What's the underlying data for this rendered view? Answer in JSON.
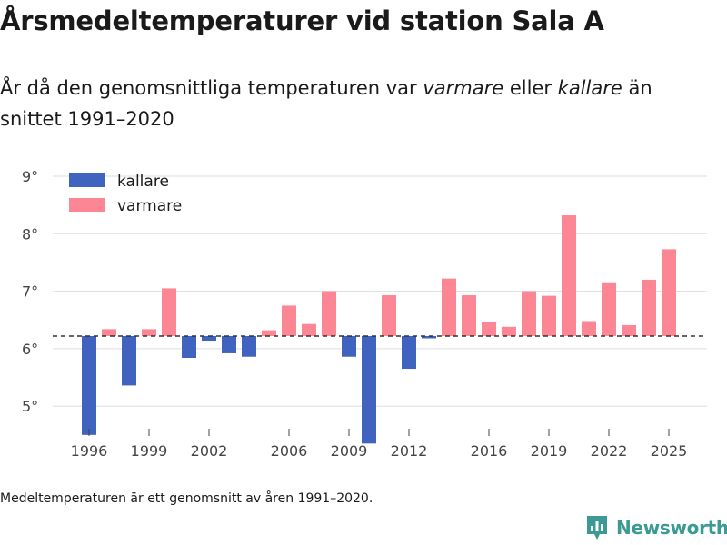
{
  "title": "Årsmedeltemperaturer vid station Sala A",
  "subtitle": {
    "part1": "År då den genomsnittliga temperaturen var ",
    "warm_word": "varmare",
    "part2": " eller ",
    "cold_word": "kallare",
    "part3": " än snittet 1991–2020"
  },
  "footnote": "Medeltemperaturen är ett genomsnitt av åren 1991–2020.",
  "brand": "Newsworthy",
  "colors": {
    "colder": "#4063bf",
    "warmer": "#fd8694",
    "grid": "#dddddd",
    "mean_line": "#333333",
    "brand": "#3b9a94"
  },
  "chart_data": {
    "type": "bar",
    "title": "Årsmedeltemperaturer vid station Sala A",
    "xlabel": "",
    "ylabel": "",
    "baseline": 6.22,
    "ylim": [
      4.45,
      9.3
    ],
    "y_ticks": [
      5,
      6,
      7,
      8,
      9
    ],
    "y_tick_labels": [
      "5°",
      "6°",
      "7°",
      "8°",
      "9°"
    ],
    "x_ticks": [
      1996,
      1999,
      2002,
      2006,
      2009,
      2012,
      2016,
      2019,
      2022,
      2025
    ],
    "legend": [
      {
        "key": "kallare",
        "label": "kallare"
      },
      {
        "key": "varmare",
        "label": "varmare"
      }
    ],
    "legend_position": "top-left",
    "years": [
      1996,
      1997,
      1998,
      1999,
      2000,
      2001,
      2002,
      2003,
      2004,
      2005,
      2006,
      2007,
      2008,
      2009,
      2010,
      2011,
      2012,
      2013,
      2014,
      2015,
      2016,
      2017,
      2018,
      2019,
      2020,
      2021,
      2022,
      2023,
      2024,
      2025
    ],
    "values": [
      4.5,
      6.34,
      5.36,
      6.34,
      7.05,
      5.84,
      6.14,
      5.92,
      5.86,
      6.32,
      6.75,
      6.43,
      7.0,
      5.86,
      4.35,
      6.93,
      5.65,
      6.18,
      7.22,
      6.93,
      6.47,
      6.38,
      7.0,
      6.92,
      8.32,
      6.48,
      7.14,
      6.41,
      7.2,
      7.73
    ]
  }
}
